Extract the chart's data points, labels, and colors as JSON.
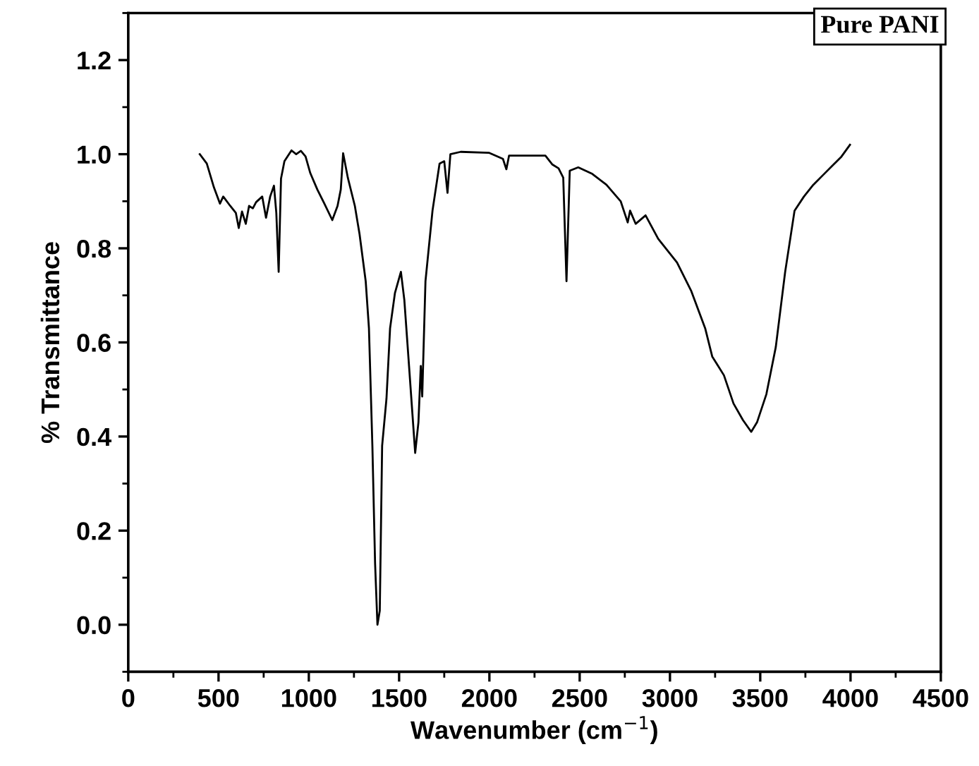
{
  "chart_data": {
    "type": "line",
    "xlabel": "Wavenumber (cm$^{−1}$)",
    "ylabel": "% Transmittance",
    "annotations": [
      "Pure PANI"
    ],
    "xlim": [
      0,
      4500
    ],
    "xticks": [
      0,
      500,
      1000,
      1500,
      2000,
      2500,
      3000,
      3500,
      4000,
      4500
    ],
    "ylim": [
      -0.1,
      1.3
    ],
    "yticks": [
      {
        "value": 0.0,
        "label": "0.0"
      },
      0.2,
      0.4,
      0.6,
      0.8,
      {
        "value": 1.0,
        "label": "1.0"
      },
      1.2
    ],
    "grid": false,
    "legend": false,
    "marker": "none",
    "line_style": "solid",
    "series": [
      {
        "color": "#000000",
        "x": [
          396,
          435,
          474,
          508,
          526,
          565,
          596,
          612,
          630,
          651,
          669,
          690,
          708,
          742,
          763,
          786,
          807,
          820,
          833,
          846,
          865,
          904,
          930,
          956,
          982,
          1008,
          1047,
          1086,
          1130,
          1159,
          1177,
          1190,
          1216,
          1255,
          1281,
          1315,
          1333,
          1352,
          1367,
          1380,
          1393,
          1406,
          1430,
          1450,
          1477,
          1510,
          1529,
          1555,
          1589,
          1607,
          1620,
          1628,
          1646,
          1685,
          1724,
          1750,
          1768,
          1784,
          1841,
          1997,
          2075,
          2094,
          2109,
          2310,
          2349,
          2383,
          2409,
          2427,
          2445,
          2492,
          2570,
          2648,
          2727,
          2766,
          2779,
          2810,
          2865,
          2935,
          3039,
          3117,
          3195,
          3234,
          3299,
          3352,
          3404,
          3450,
          3482,
          3534,
          3586,
          3638,
          3690,
          3742,
          3794,
          3846,
          3898,
          3950,
          3997
        ],
        "values": [
          1.0,
          0.98,
          0.93,
          0.895,
          0.91,
          0.89,
          0.875,
          0.843,
          0.878,
          0.852,
          0.89,
          0.885,
          0.898,
          0.91,
          0.865,
          0.91,
          0.933,
          0.875,
          0.75,
          0.948,
          0.985,
          1.008,
          1.0,
          1.007,
          0.995,
          0.96,
          0.925,
          0.895,
          0.86,
          0.89,
          0.925,
          1.002,
          0.95,
          0.89,
          0.83,
          0.73,
          0.63,
          0.38,
          0.13,
          0.0,
          0.03,
          0.38,
          0.48,
          0.63,
          0.705,
          0.75,
          0.69,
          0.55,
          0.365,
          0.43,
          0.55,
          0.485,
          0.73,
          0.88,
          0.98,
          0.985,
          0.918,
          1.0,
          1.005,
          1.003,
          0.99,
          0.968,
          0.997,
          0.997,
          0.978,
          0.97,
          0.95,
          0.73,
          0.965,
          0.972,
          0.958,
          0.935,
          0.9,
          0.855,
          0.88,
          0.852,
          0.87,
          0.82,
          0.77,
          0.71,
          0.63,
          0.57,
          0.53,
          0.47,
          0.435,
          0.41,
          0.43,
          0.49,
          0.59,
          0.75,
          0.88,
          0.91,
          0.935,
          0.955,
          0.975,
          0.995,
          1.02
        ]
      }
    ]
  }
}
